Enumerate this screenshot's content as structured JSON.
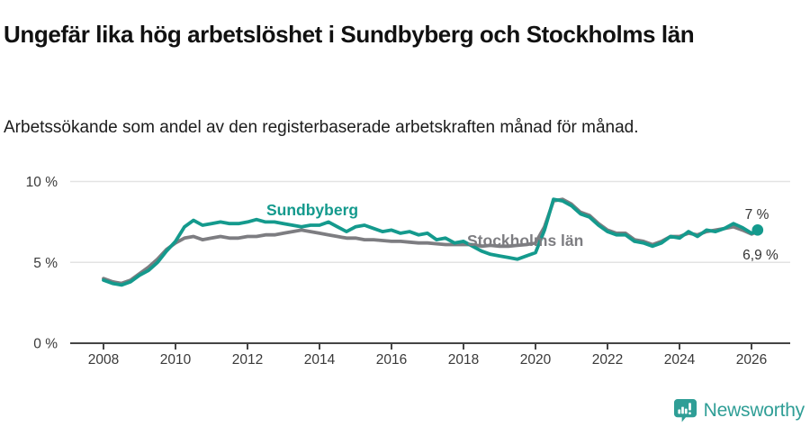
{
  "header": {
    "title": "Ungefär lika hög arbetslöshet i Sundbyberg och Stockholms län",
    "subtitle": "Arbetssökande som andel av den registerbaserade arbetskraften månad för månad."
  },
  "footer": {
    "brand": "Newsworthy"
  },
  "colors": {
    "sundbyberg": "#149a8d",
    "stockholm": "#7d7d81",
    "brand_teal": "#2f9e96",
    "grid": "#e3e3e3",
    "axis": "#454545",
    "value_label": "#333333",
    "tick_label": "#3a3a3a"
  },
  "chart_data": {
    "type": "line",
    "title": "Ungefär lika hög arbetslöshet i Sundbyberg och Stockholms län",
    "subtitle": "Arbetssökande som andel av den registerbaserade arbetskraften månad för månad.",
    "grid": "horizontal-only",
    "x_axis": {
      "ticks": [
        2008,
        2010,
        2012,
        2014,
        2016,
        2018,
        2020,
        2022,
        2024,
        2026
      ],
      "range": [
        2007.1,
        2027.1
      ]
    },
    "y_axis": {
      "ticks": [
        {
          "value": 0,
          "label": "0 %"
        },
        {
          "value": 5,
          "label": "5 %"
        },
        {
          "value": 10,
          "label": "10 %"
        }
      ],
      "range": [
        0,
        10
      ],
      "unit": "%"
    },
    "x": [
      2008,
      2008.25,
      2008.5,
      2008.75,
      2009,
      2009.25,
      2009.5,
      2009.75,
      2010,
      2010.25,
      2010.5,
      2010.75,
      2011,
      2011.25,
      2011.5,
      2011.75,
      2012,
      2012.25,
      2012.5,
      2012.75,
      2013,
      2013.25,
      2013.5,
      2013.75,
      2014,
      2014.25,
      2014.5,
      2014.75,
      2015,
      2015.25,
      2015.5,
      2015.75,
      2016,
      2016.25,
      2016.5,
      2016.75,
      2017,
      2017.25,
      2017.5,
      2017.75,
      2018,
      2018.25,
      2018.5,
      2018.75,
      2019,
      2019.25,
      2019.5,
      2019.75,
      2020,
      2020.25,
      2020.5,
      2020.75,
      2021,
      2021.25,
      2021.5,
      2021.75,
      2022,
      2022.25,
      2022.5,
      2022.75,
      2023,
      2023.25,
      2023.5,
      2023.75,
      2024,
      2024.25,
      2024.5,
      2024.75,
      2025,
      2025.25,
      2025.5,
      2025.75,
      2026,
      2026.17
    ],
    "series": [
      {
        "name": "Stockholms län",
        "color_key": "stockholm",
        "end_label": "6,9 %",
        "end_value": 6.9,
        "end_dot": false,
        "values": [
          4.0,
          3.8,
          3.7,
          3.9,
          4.3,
          4.7,
          5.2,
          5.8,
          6.2,
          6.5,
          6.6,
          6.4,
          6.5,
          6.6,
          6.5,
          6.5,
          6.6,
          6.6,
          6.7,
          6.7,
          6.8,
          6.9,
          7.0,
          6.9,
          6.8,
          6.7,
          6.6,
          6.5,
          6.5,
          6.4,
          6.4,
          6.35,
          6.3,
          6.3,
          6.25,
          6.2,
          6.2,
          6.15,
          6.1,
          6.1,
          6.1,
          6.1,
          6.0,
          6.05,
          6.0,
          6.0,
          6.05,
          6.1,
          6.2,
          7.2,
          8.8,
          8.9,
          8.6,
          8.1,
          7.9,
          7.4,
          7.0,
          6.8,
          6.8,
          6.4,
          6.3,
          6.1,
          6.3,
          6.6,
          6.6,
          6.8,
          6.7,
          6.9,
          7.0,
          7.1,
          7.2,
          7.0,
          6.75,
          6.9
        ]
      },
      {
        "name": "Sundbyberg",
        "color_key": "sundbyberg",
        "end_label": "7 %",
        "end_value": 7.0,
        "end_dot": true,
        "values": [
          3.9,
          3.7,
          3.6,
          3.8,
          4.2,
          4.5,
          5.0,
          5.7,
          6.3,
          7.2,
          7.6,
          7.3,
          7.4,
          7.5,
          7.4,
          7.4,
          7.5,
          7.65,
          7.5,
          7.5,
          7.4,
          7.3,
          7.2,
          7.3,
          7.3,
          7.5,
          7.2,
          6.9,
          7.2,
          7.3,
          7.1,
          6.9,
          7.0,
          6.8,
          6.9,
          6.7,
          6.8,
          6.4,
          6.5,
          6.2,
          6.3,
          6.0,
          5.7,
          5.5,
          5.4,
          5.3,
          5.2,
          5.4,
          5.6,
          7.0,
          8.9,
          8.8,
          8.5,
          8.0,
          7.8,
          7.3,
          6.9,
          6.7,
          6.7,
          6.3,
          6.2,
          6.0,
          6.2,
          6.6,
          6.5,
          6.9,
          6.6,
          7.0,
          6.9,
          7.1,
          7.4,
          7.15,
          6.8,
          7.0
        ]
      }
    ],
    "legend_position": "inline-labels"
  }
}
